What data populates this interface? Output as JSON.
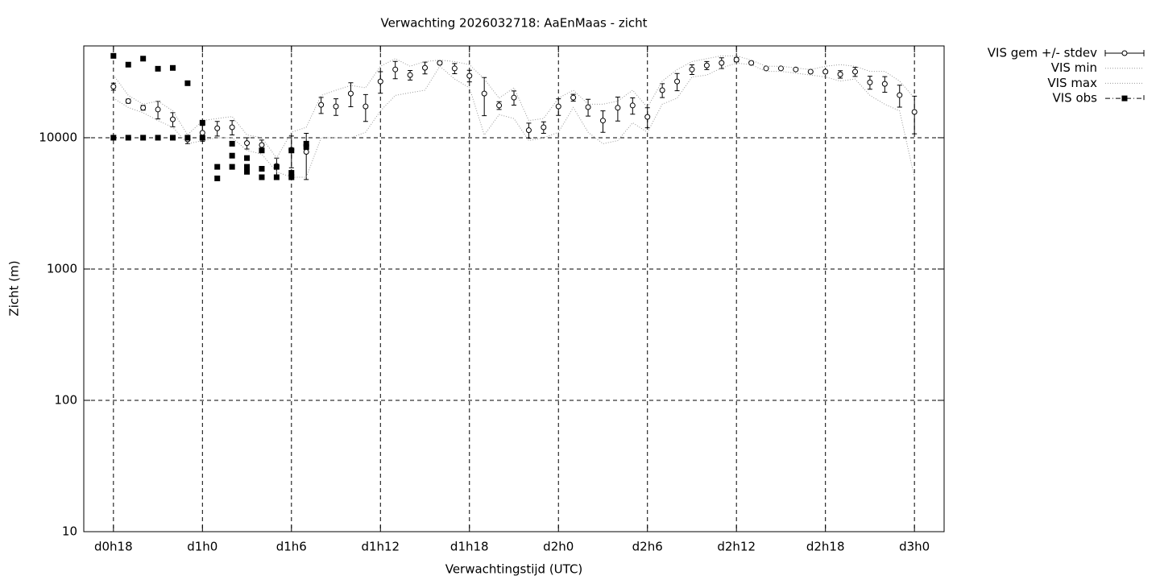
{
  "chart_data": {
    "type": "line",
    "title": "Verwachting 2026032718: AaEnMaas - zicht",
    "xlabel": "Verwachtingstijd (UTC)",
    "ylabel": "Zicht (m)",
    "xlim": [
      16,
      74
    ],
    "xticks": [
      {
        "value": 18,
        "label": "d0h18"
      },
      {
        "value": 24,
        "label": "d1h0"
      },
      {
        "value": 30,
        "label": "d1h6"
      },
      {
        "value": 36,
        "label": "d1h12"
      },
      {
        "value": 42,
        "label": "d1h18"
      },
      {
        "value": 48,
        "label": "d2h0"
      },
      {
        "value": 54,
        "label": "d2h6"
      },
      {
        "value": 60,
        "label": "d2h12"
      },
      {
        "value": 66,
        "label": "d2h18"
      },
      {
        "value": 72,
        "label": "d3h0"
      }
    ],
    "ylim": [
      10,
      50000
    ],
    "yticks": [
      10,
      100,
      1000,
      10000
    ],
    "log_y": true,
    "grid": true,
    "legend": "top-right-outside",
    "series": [
      {
        "name": "VIS gem +/- stdev",
        "color": "#000000",
        "marker": "circle",
        "x": [
          18,
          19,
          20,
          21,
          22,
          23,
          24,
          25,
          26,
          27,
          28,
          29,
          30,
          31,
          32,
          33,
          34,
          35,
          36,
          37,
          38,
          39,
          40,
          41,
          42,
          43,
          44,
          45,
          46,
          47,
          48,
          49,
          50,
          51,
          52,
          53,
          54,
          55,
          56,
          57,
          58,
          59,
          60,
          61,
          62,
          63,
          64,
          65,
          66,
          67,
          68,
          69,
          70,
          71,
          72
        ],
        "values": [
          24500,
          19000,
          16900,
          16400,
          13800,
          9700,
          10900,
          11800,
          12000,
          9100,
          8800,
          6100,
          8100,
          7800,
          17800,
          17300,
          21700,
          17300,
          26800,
          33100,
          30000,
          34100,
          37100,
          33700,
          29600,
          21700,
          17600,
          20200,
          11400,
          12000,
          17300,
          20200,
          17100,
          13500,
          16900,
          17600,
          14400,
          23000,
          26800,
          33100,
          35500,
          37100,
          39300,
          37100,
          33700,
          33700,
          33100,
          31800,
          31800,
          30400,
          31800,
          26400,
          25700,
          21100,
          15700
        ],
        "errors": [
          1500,
          700,
          700,
          2500,
          1700,
          700,
          1500,
          1500,
          1500,
          900,
          800,
          900,
          2200,
          3000,
          2500,
          2500,
          4500,
          4000,
          5000,
          5000,
          2500,
          3500,
          1000,
          3000,
          3000,
          7000,
          1200,
          2500,
          1500,
          1200,
          2500,
          1200,
          2500,
          2500,
          3500,
          2500,
          2500,
          2800,
          4000,
          2800,
          2500,
          3500,
          1500,
          1000,
          500,
          500,
          500,
          500,
          800,
          2000,
          2500,
          3000,
          3500,
          4000,
          5000
        ]
      },
      {
        "name": "VIS min",
        "color": "#999999",
        "marker": "none",
        "x": [
          18,
          19,
          20,
          21,
          22,
          23,
          24,
          25,
          26,
          27,
          28,
          29,
          30,
          31,
          32,
          33,
          34,
          35,
          36,
          37,
          38,
          39,
          40,
          41,
          42,
          43,
          44,
          45,
          46,
          47,
          48,
          49,
          50,
          51,
          52,
          53,
          54,
          55,
          56,
          57,
          58,
          59,
          60,
          61,
          62,
          63,
          64,
          65,
          66,
          67,
          68,
          69,
          70,
          71,
          72
        ],
        "values": [
          20000,
          17000,
          15500,
          13500,
          12000,
          9000,
          9500,
          10000,
          10000,
          8000,
          7500,
          5500,
          5000,
          5000,
          10000,
          10000,
          10000,
          11000,
          16000,
          21000,
          22000,
          23000,
          35000,
          28000,
          24000,
          10500,
          15000,
          14000,
          9500,
          10000,
          11000,
          17000,
          11000,
          9000,
          9500,
          13000,
          11000,
          18000,
          20000,
          29000,
          30000,
          34000,
          37000,
          36000,
          32000,
          32000,
          31000,
          30000,
          29000,
          27000,
          28000,
          21000,
          18000,
          16000,
          5000
        ]
      },
      {
        "name": "VIS max",
        "color": "#999999",
        "marker": "none",
        "x": [
          18,
          19,
          20,
          21,
          22,
          23,
          24,
          25,
          26,
          27,
          28,
          29,
          30,
          31,
          32,
          33,
          34,
          35,
          36,
          37,
          38,
          39,
          40,
          41,
          42,
          43,
          44,
          45,
          46,
          47,
          48,
          49,
          50,
          51,
          52,
          53,
          54,
          55,
          56,
          57,
          58,
          59,
          60,
          61,
          62,
          63,
          64,
          65,
          66,
          67,
          68,
          69,
          70,
          71,
          72
        ],
        "values": [
          30000,
          21000,
          18000,
          19000,
          16000,
          10500,
          13500,
          14000,
          14500,
          10500,
          10000,
          7000,
          11000,
          12000,
          21000,
          23000,
          25000,
          24000,
          35000,
          40000,
          35000,
          38000,
          39000,
          38000,
          36000,
          28000,
          20000,
          24000,
          13500,
          14000,
          20000,
          23000,
          18000,
          18000,
          19000,
          23000,
          17000,
          27000,
          33000,
          38000,
          40000,
          42000,
          42000,
          39000,
          35000,
          35000,
          34000,
          33000,
          35000,
          36000,
          35000,
          32000,
          32000,
          27000,
          20000
        ]
      },
      {
        "name": "VIS obs",
        "color": "#000000",
        "marker": "square",
        "x": [
          18,
          18,
          19,
          19,
          20,
          20,
          21,
          21,
          22,
          22,
          23,
          23,
          24,
          24,
          25,
          25,
          26,
          26,
          26,
          27,
          27,
          27,
          28,
          28,
          28,
          29,
          29,
          30,
          30,
          30,
          31,
          31
        ],
        "values": [
          42000,
          10000,
          36000,
          10000,
          40000,
          10000,
          33500,
          10000,
          34000,
          10000,
          26000,
          10000,
          13000,
          10000,
          6000,
          4900,
          9000,
          7300,
          6000,
          7000,
          6000,
          5500,
          8000,
          5800,
          5000,
          6000,
          5000,
          8000,
          5400,
          5000,
          9000,
          8500
        ]
      }
    ]
  }
}
